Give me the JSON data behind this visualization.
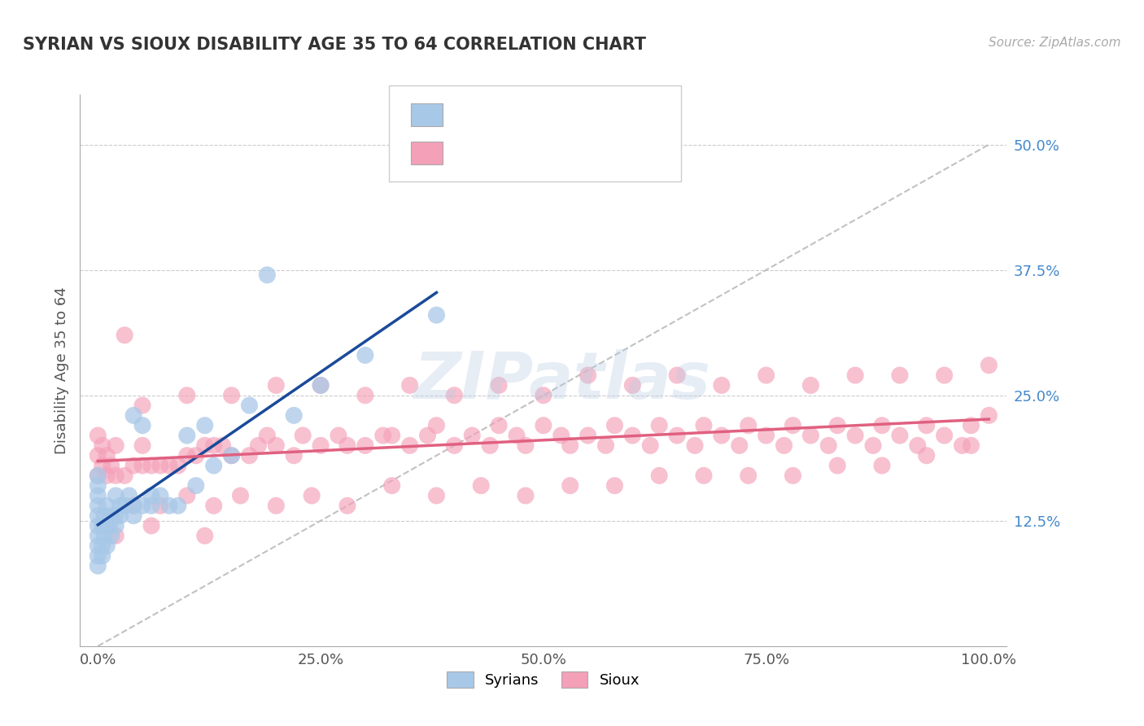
{
  "title": "SYRIAN VS SIOUX DISABILITY AGE 35 TO 64 CORRELATION CHART",
  "source": "Source: ZipAtlas.com",
  "ylabel": "Disability Age 35 to 64",
  "xlim": [
    -0.02,
    1.02
  ],
  "ylim": [
    0.0,
    0.55
  ],
  "xticks": [
    0.0,
    0.25,
    0.5,
    0.75,
    1.0
  ],
  "xtick_labels": [
    "0.0%",
    "25.0%",
    "50.0%",
    "75.0%",
    "100.0%"
  ],
  "yticks": [
    0.0,
    0.125,
    0.25,
    0.375,
    0.5
  ],
  "ytick_labels": [
    "",
    "12.5%",
    "25.0%",
    "37.5%",
    "50.0%"
  ],
  "syrian_color": "#a8c8e8",
  "sioux_color": "#f4a0b8",
  "syrian_line_color": "#1a4a9a",
  "sioux_line_color": "#e06080",
  "diagonal_color": "#bbbbbb",
  "background_color": "#ffffff",
  "watermark": "ZIPatlas",
  "title_color": "#333333",
  "source_color": "#aaaaaa",
  "label_color": "#555555",
  "grid_color": "#cccccc",
  "legend_text_color": "#3355cc",
  "syrian_x": [
    0.0,
    0.0,
    0.0,
    0.0,
    0.0,
    0.0,
    0.0,
    0.0,
    0.0,
    0.0,
    0.005,
    0.005,
    0.005,
    0.007,
    0.007,
    0.01,
    0.01,
    0.01,
    0.013,
    0.015,
    0.015,
    0.02,
    0.02,
    0.02,
    0.025,
    0.025,
    0.03,
    0.035,
    0.04,
    0.04,
    0.04,
    0.05,
    0.05,
    0.06,
    0.06,
    0.07,
    0.08,
    0.09,
    0.1,
    0.11,
    0.12,
    0.13,
    0.15,
    0.17,
    0.19,
    0.22,
    0.25,
    0.3,
    0.38
  ],
  "syrian_y": [
    0.08,
    0.09,
    0.1,
    0.11,
    0.12,
    0.13,
    0.14,
    0.15,
    0.16,
    0.17,
    0.09,
    0.1,
    0.12,
    0.11,
    0.13,
    0.1,
    0.12,
    0.14,
    0.12,
    0.11,
    0.13,
    0.12,
    0.13,
    0.15,
    0.13,
    0.14,
    0.14,
    0.15,
    0.13,
    0.14,
    0.23,
    0.14,
    0.22,
    0.14,
    0.15,
    0.15,
    0.14,
    0.14,
    0.21,
    0.16,
    0.22,
    0.18,
    0.19,
    0.24,
    0.37,
    0.23,
    0.26,
    0.29,
    0.33
  ],
  "sioux_x": [
    0.0,
    0.0,
    0.0,
    0.005,
    0.005,
    0.01,
    0.01,
    0.015,
    0.02,
    0.02,
    0.03,
    0.03,
    0.04,
    0.05,
    0.05,
    0.06,
    0.07,
    0.08,
    0.09,
    0.1,
    0.11,
    0.12,
    0.13,
    0.14,
    0.15,
    0.17,
    0.18,
    0.19,
    0.2,
    0.22,
    0.23,
    0.25,
    0.27,
    0.28,
    0.3,
    0.32,
    0.33,
    0.35,
    0.37,
    0.38,
    0.4,
    0.42,
    0.44,
    0.45,
    0.47,
    0.48,
    0.5,
    0.52,
    0.53,
    0.55,
    0.57,
    0.58,
    0.6,
    0.62,
    0.63,
    0.65,
    0.67,
    0.68,
    0.7,
    0.72,
    0.73,
    0.75,
    0.77,
    0.78,
    0.8,
    0.82,
    0.83,
    0.85,
    0.87,
    0.88,
    0.9,
    0.92,
    0.93,
    0.95,
    0.97,
    0.98,
    1.0,
    0.04,
    0.07,
    0.1,
    0.13,
    0.16,
    0.2,
    0.24,
    0.28,
    0.33,
    0.38,
    0.43,
    0.48,
    0.53,
    0.58,
    0.63,
    0.68,
    0.73,
    0.78,
    0.83,
    0.88,
    0.93,
    0.98,
    0.05,
    0.1,
    0.15,
    0.2,
    0.25,
    0.3,
    0.35,
    0.4,
    0.45,
    0.5,
    0.55,
    0.6,
    0.65,
    0.7,
    0.75,
    0.8,
    0.85,
    0.9,
    0.95,
    1.0,
    0.02,
    0.06,
    0.12
  ],
  "sioux_y": [
    0.17,
    0.19,
    0.21,
    0.18,
    0.2,
    0.17,
    0.19,
    0.18,
    0.17,
    0.2,
    0.17,
    0.31,
    0.18,
    0.18,
    0.2,
    0.18,
    0.18,
    0.18,
    0.18,
    0.19,
    0.19,
    0.2,
    0.2,
    0.2,
    0.19,
    0.19,
    0.2,
    0.21,
    0.2,
    0.19,
    0.21,
    0.2,
    0.21,
    0.2,
    0.2,
    0.21,
    0.21,
    0.2,
    0.21,
    0.22,
    0.2,
    0.21,
    0.2,
    0.22,
    0.21,
    0.2,
    0.22,
    0.21,
    0.2,
    0.21,
    0.2,
    0.22,
    0.21,
    0.2,
    0.22,
    0.21,
    0.2,
    0.22,
    0.21,
    0.2,
    0.22,
    0.21,
    0.2,
    0.22,
    0.21,
    0.2,
    0.22,
    0.21,
    0.2,
    0.22,
    0.21,
    0.2,
    0.22,
    0.21,
    0.2,
    0.22,
    0.23,
    0.14,
    0.14,
    0.15,
    0.14,
    0.15,
    0.14,
    0.15,
    0.14,
    0.16,
    0.15,
    0.16,
    0.15,
    0.16,
    0.16,
    0.17,
    0.17,
    0.17,
    0.17,
    0.18,
    0.18,
    0.19,
    0.2,
    0.24,
    0.25,
    0.25,
    0.26,
    0.26,
    0.25,
    0.26,
    0.25,
    0.26,
    0.25,
    0.27,
    0.26,
    0.27,
    0.26,
    0.27,
    0.26,
    0.27,
    0.27,
    0.27,
    0.28,
    0.11,
    0.12,
    0.11
  ]
}
